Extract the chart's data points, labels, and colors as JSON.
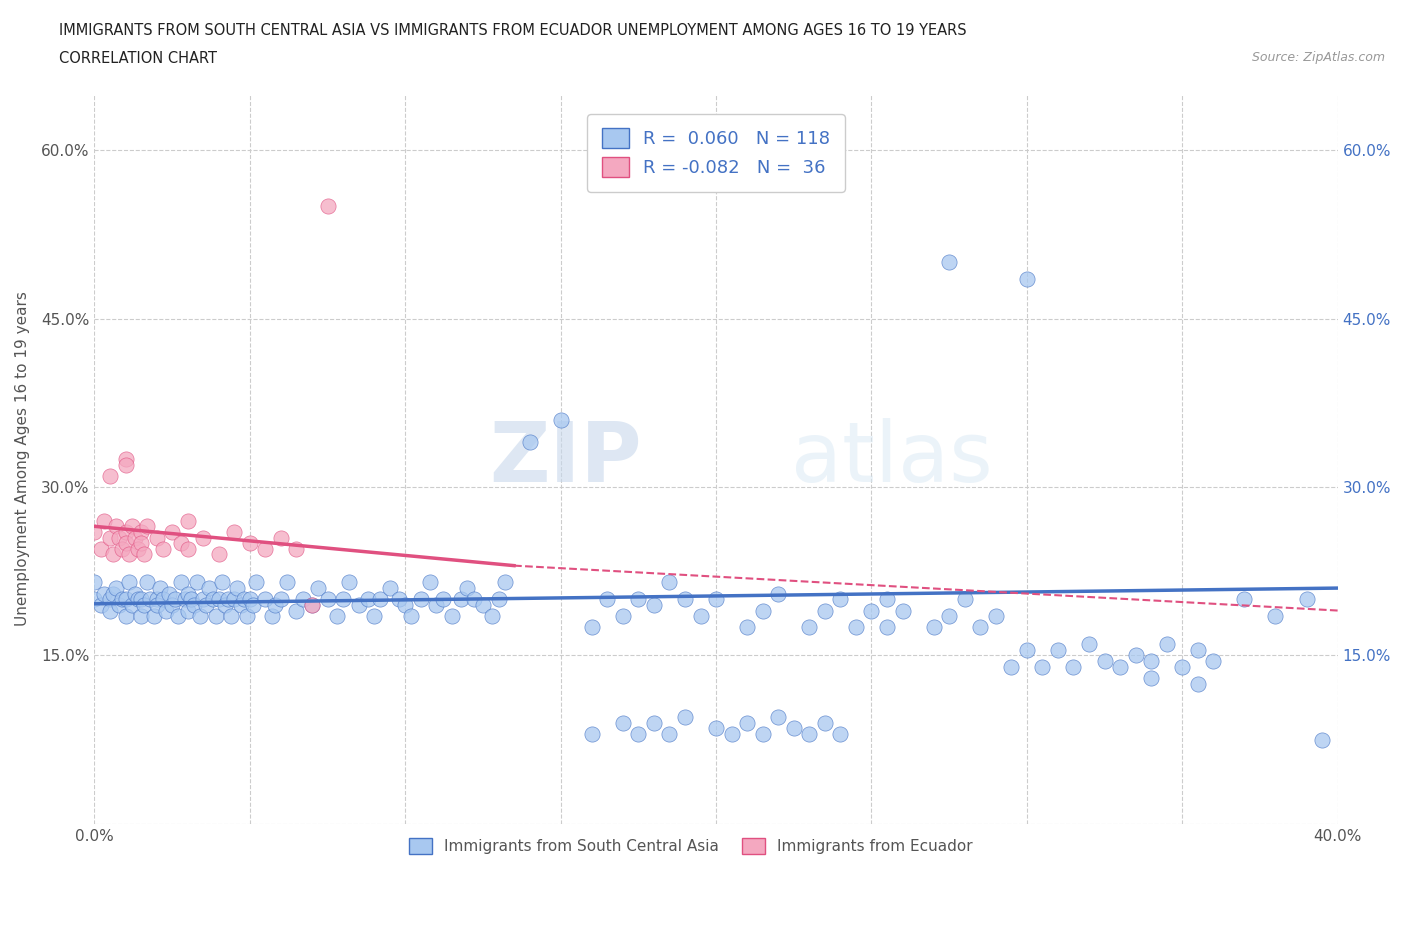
{
  "title_line1": "IMMIGRANTS FROM SOUTH CENTRAL ASIA VS IMMIGRANTS FROM ECUADOR UNEMPLOYMENT AMONG AGES 16 TO 19 YEARS",
  "title_line2": "CORRELATION CHART",
  "source_text": "Source: ZipAtlas.com",
  "ylabel": "Unemployment Among Ages 16 to 19 years",
  "xlim": [
    0.0,
    0.4
  ],
  "ylim": [
    0.0,
    0.65
  ],
  "x_ticks": [
    0.0,
    0.05,
    0.1,
    0.15,
    0.2,
    0.25,
    0.3,
    0.35,
    0.4
  ],
  "y_ticks": [
    0.0,
    0.15,
    0.3,
    0.45,
    0.6
  ],
  "watermark_zip": "ZIP",
  "watermark_atlas": "atlas",
  "color_blue": "#A8C8F0",
  "color_pink": "#F4A8C0",
  "color_blue_dark": "#4472C4",
  "color_pink_dark": "#E05080",
  "color_legend_text": "#4472C4",
  "scatter_blue": [
    [
      0.0,
      0.2
    ],
    [
      0.0,
      0.215
    ],
    [
      0.002,
      0.195
    ],
    [
      0.003,
      0.205
    ],
    [
      0.005,
      0.2
    ],
    [
      0.005,
      0.19
    ],
    [
      0.006,
      0.205
    ],
    [
      0.007,
      0.21
    ],
    [
      0.008,
      0.195
    ],
    [
      0.009,
      0.2
    ],
    [
      0.01,
      0.2
    ],
    [
      0.01,
      0.185
    ],
    [
      0.011,
      0.215
    ],
    [
      0.012,
      0.195
    ],
    [
      0.013,
      0.205
    ],
    [
      0.014,
      0.2
    ],
    [
      0.015,
      0.2
    ],
    [
      0.015,
      0.185
    ],
    [
      0.016,
      0.195
    ],
    [
      0.017,
      0.215
    ],
    [
      0.018,
      0.2
    ],
    [
      0.019,
      0.185
    ],
    [
      0.02,
      0.2
    ],
    [
      0.02,
      0.195
    ],
    [
      0.021,
      0.21
    ],
    [
      0.022,
      0.2
    ],
    [
      0.023,
      0.19
    ],
    [
      0.024,
      0.205
    ],
    [
      0.025,
      0.195
    ],
    [
      0.026,
      0.2
    ],
    [
      0.027,
      0.185
    ],
    [
      0.028,
      0.215
    ],
    [
      0.029,
      0.2
    ],
    [
      0.03,
      0.19
    ],
    [
      0.03,
      0.205
    ],
    [
      0.031,
      0.2
    ],
    [
      0.032,
      0.195
    ],
    [
      0.033,
      0.215
    ],
    [
      0.034,
      0.185
    ],
    [
      0.035,
      0.2
    ],
    [
      0.036,
      0.195
    ],
    [
      0.037,
      0.21
    ],
    [
      0.038,
      0.2
    ],
    [
      0.039,
      0.185
    ],
    [
      0.04,
      0.2
    ],
    [
      0.041,
      0.215
    ],
    [
      0.042,
      0.195
    ],
    [
      0.043,
      0.2
    ],
    [
      0.044,
      0.185
    ],
    [
      0.045,
      0.2
    ],
    [
      0.046,
      0.21
    ],
    [
      0.047,
      0.195
    ],
    [
      0.048,
      0.2
    ],
    [
      0.049,
      0.185
    ],
    [
      0.05,
      0.2
    ],
    [
      0.051,
      0.195
    ],
    [
      0.052,
      0.215
    ],
    [
      0.055,
      0.2
    ],
    [
      0.057,
      0.185
    ],
    [
      0.058,
      0.195
    ],
    [
      0.06,
      0.2
    ],
    [
      0.062,
      0.215
    ],
    [
      0.065,
      0.19
    ],
    [
      0.067,
      0.2
    ],
    [
      0.07,
      0.195
    ],
    [
      0.072,
      0.21
    ],
    [
      0.075,
      0.2
    ],
    [
      0.078,
      0.185
    ],
    [
      0.08,
      0.2
    ],
    [
      0.082,
      0.215
    ],
    [
      0.085,
      0.195
    ],
    [
      0.088,
      0.2
    ],
    [
      0.09,
      0.185
    ],
    [
      0.092,
      0.2
    ],
    [
      0.095,
      0.21
    ],
    [
      0.098,
      0.2
    ],
    [
      0.1,
      0.195
    ],
    [
      0.102,
      0.185
    ],
    [
      0.105,
      0.2
    ],
    [
      0.108,
      0.215
    ],
    [
      0.11,
      0.195
    ],
    [
      0.112,
      0.2
    ],
    [
      0.115,
      0.185
    ],
    [
      0.118,
      0.2
    ],
    [
      0.12,
      0.21
    ],
    [
      0.122,
      0.2
    ],
    [
      0.125,
      0.195
    ],
    [
      0.128,
      0.185
    ],
    [
      0.13,
      0.2
    ],
    [
      0.132,
      0.215
    ],
    [
      0.14,
      0.34
    ],
    [
      0.15,
      0.36
    ],
    [
      0.16,
      0.175
    ],
    [
      0.165,
      0.2
    ],
    [
      0.17,
      0.185
    ],
    [
      0.175,
      0.2
    ],
    [
      0.18,
      0.195
    ],
    [
      0.185,
      0.215
    ],
    [
      0.19,
      0.2
    ],
    [
      0.195,
      0.185
    ],
    [
      0.2,
      0.2
    ],
    [
      0.21,
      0.175
    ],
    [
      0.215,
      0.19
    ],
    [
      0.22,
      0.205
    ],
    [
      0.23,
      0.175
    ],
    [
      0.235,
      0.19
    ],
    [
      0.24,
      0.2
    ],
    [
      0.245,
      0.175
    ],
    [
      0.25,
      0.19
    ],
    [
      0.255,
      0.2
    ],
    [
      0.255,
      0.175
    ],
    [
      0.26,
      0.19
    ],
    [
      0.27,
      0.175
    ],
    [
      0.275,
      0.185
    ],
    [
      0.28,
      0.2
    ],
    [
      0.285,
      0.175
    ],
    [
      0.29,
      0.185
    ],
    [
      0.295,
      0.14
    ],
    [
      0.3,
      0.155
    ],
    [
      0.305,
      0.14
    ],
    [
      0.31,
      0.155
    ],
    [
      0.315,
      0.14
    ],
    [
      0.32,
      0.16
    ],
    [
      0.325,
      0.145
    ],
    [
      0.33,
      0.14
    ],
    [
      0.335,
      0.15
    ],
    [
      0.34,
      0.145
    ],
    [
      0.345,
      0.16
    ],
    [
      0.35,
      0.14
    ],
    [
      0.355,
      0.155
    ],
    [
      0.36,
      0.145
    ],
    [
      0.16,
      0.08
    ],
    [
      0.17,
      0.09
    ],
    [
      0.175,
      0.08
    ],
    [
      0.18,
      0.09
    ],
    [
      0.185,
      0.08
    ],
    [
      0.19,
      0.095
    ],
    [
      0.2,
      0.085
    ],
    [
      0.205,
      0.08
    ],
    [
      0.21,
      0.09
    ],
    [
      0.215,
      0.08
    ],
    [
      0.22,
      0.095
    ],
    [
      0.225,
      0.085
    ],
    [
      0.23,
      0.08
    ],
    [
      0.235,
      0.09
    ],
    [
      0.24,
      0.08
    ],
    [
      0.275,
      0.5
    ],
    [
      0.3,
      0.485
    ],
    [
      0.34,
      0.13
    ],
    [
      0.355,
      0.125
    ],
    [
      0.37,
      0.2
    ],
    [
      0.38,
      0.185
    ],
    [
      0.39,
      0.2
    ],
    [
      0.395,
      0.075
    ]
  ],
  "scatter_pink": [
    [
      0.0,
      0.26
    ],
    [
      0.002,
      0.245
    ],
    [
      0.003,
      0.27
    ],
    [
      0.005,
      0.255
    ],
    [
      0.006,
      0.24
    ],
    [
      0.007,
      0.265
    ],
    [
      0.008,
      0.255
    ],
    [
      0.009,
      0.245
    ],
    [
      0.01,
      0.26
    ],
    [
      0.01,
      0.25
    ],
    [
      0.011,
      0.24
    ],
    [
      0.012,
      0.265
    ],
    [
      0.013,
      0.255
    ],
    [
      0.014,
      0.245
    ],
    [
      0.015,
      0.26
    ],
    [
      0.015,
      0.25
    ],
    [
      0.016,
      0.24
    ],
    [
      0.017,
      0.265
    ],
    [
      0.02,
      0.255
    ],
    [
      0.022,
      0.245
    ],
    [
      0.025,
      0.26
    ],
    [
      0.028,
      0.25
    ],
    [
      0.03,
      0.27
    ],
    [
      0.03,
      0.245
    ],
    [
      0.035,
      0.255
    ],
    [
      0.04,
      0.24
    ],
    [
      0.045,
      0.26
    ],
    [
      0.05,
      0.25
    ],
    [
      0.055,
      0.245
    ],
    [
      0.06,
      0.255
    ],
    [
      0.065,
      0.245
    ],
    [
      0.07,
      0.195
    ],
    [
      0.005,
      0.31
    ],
    [
      0.01,
      0.325
    ],
    [
      0.01,
      0.32
    ],
    [
      0.075,
      0.55
    ]
  ],
  "trendline_blue": {
    "x_start": 0.0,
    "x_end": 0.4,
    "y_start": 0.196,
    "y_end": 0.21
  },
  "trendline_pink_solid": {
    "x_start": 0.0,
    "x_end": 0.135,
    "y_start": 0.265,
    "y_end": 0.23
  },
  "trendline_pink_dashed": {
    "x_start": 0.135,
    "x_end": 0.4,
    "y_start": 0.23,
    "y_end": 0.19
  }
}
